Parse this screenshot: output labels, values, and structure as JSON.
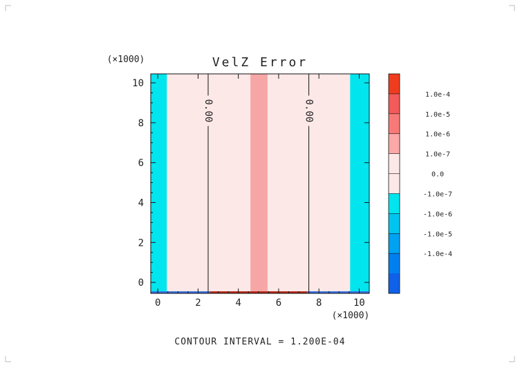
{
  "chart_data": {
    "type": "heatmap",
    "title": "VelZ Error",
    "x_scale_label": "(×1000)",
    "y_scale_label": "(×1000)",
    "footer": "CONTOUR INTERVAL = 1.200E-04",
    "xlim": [
      -0.35,
      10.5
    ],
    "ylim": [
      -0.55,
      10.45
    ],
    "x_ticks": [
      0,
      2,
      4,
      6,
      8,
      10
    ],
    "y_ticks": [
      0,
      2,
      4,
      6,
      8,
      10
    ],
    "x_tick_labels": [
      "0",
      "2",
      "4",
      "6",
      "8",
      "10"
    ],
    "y_tick_labels": [
      "0",
      "2",
      "4",
      "6",
      "8",
      "10"
    ],
    "background_color": "#fde8e8",
    "regions": [
      {
        "x0": -0.35,
        "x1": 0.45,
        "level": "-1.0e-7 to 0",
        "color": "#00e5ee"
      },
      {
        "x0": 4.6,
        "x1": 5.45,
        "level": "1.0e-7 to 1.0e-6",
        "color": "#f7a6a6"
      },
      {
        "x0": 9.55,
        "x1": 10.5,
        "level": "-1.0e-7 to 0",
        "color": "#00e5ee"
      }
    ],
    "contour_lines": [
      {
        "x": 2.5,
        "label": "0.00"
      },
      {
        "x": 7.5,
        "label": "0.00"
      }
    ],
    "colorbar": {
      "labels": [
        "1.0e-4",
        "1.0e-5",
        "1.0e-6",
        "1.0e-7",
        "0.0",
        "-1.0e-7",
        "-1.0e-6",
        "-1.0e-5",
        "-1.0e-4"
      ],
      "colors": [
        "#f03c1e",
        "#f35a5a",
        "#f77a78",
        "#fba8a8",
        "#fde8e8",
        "#fde8e8",
        "#00e5ee",
        "#00c4f0",
        "#00a2f2",
        "#0080f0",
        "#1060e8"
      ]
    }
  }
}
